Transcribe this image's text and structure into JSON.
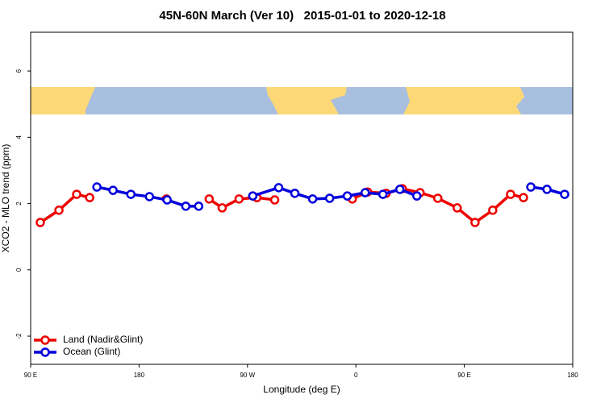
{
  "chart_data": {
    "type": "line",
    "title": "45N-60N March (Ver 10)   2015-01-01 to 2020-12-18",
    "x_label": "Longitude (deg E)",
    "y_label": "XCO2 - MLO trend (ppm)",
    "xlim": [
      90,
      540
    ],
    "ylim": [
      -2.85,
      7.17
    ],
    "xticks": [
      {
        "value": 90,
        "label": "90 E"
      },
      180,
      {
        "value": 270,
        "label": "90 W"
      },
      {
        "value": 360,
        "label": "0"
      },
      {
        "value": 450,
        "label": "90 E"
      },
      {
        "value": 540,
        "label": "180"
      }
    ],
    "yticks": [
      -2,
      0,
      2,
      4,
      6
    ],
    "legend": "bottom-left",
    "series": [
      {
        "name": "Land (Nadir&Glint)",
        "color": "#ee0000",
        "x": [
          98.0,
          113.5,
          128.2,
          139.0,
          null,
          202.7,
          null,
          238.2,
          249.0,
          263.0,
          277.8,
          292.6,
          null,
          357.0,
          369.7,
          385.1,
          398.5,
          413.3,
          428.0,
          444.1,
          458.9,
          473.6,
          488.4,
          499.1
        ],
        "values": [
          1.43,
          1.8,
          2.28,
          2.18,
          null,
          2.14,
          null,
          2.14,
          1.87,
          2.14,
          2.18,
          2.11,
          null,
          2.14,
          2.35,
          2.31,
          2.45,
          2.33,
          2.16,
          1.87,
          1.43,
          1.8,
          2.28,
          2.18
        ]
      },
      {
        "name": "Ocean (Glint)",
        "color": "#0000dd",
        "x": [
          145.0,
          158.4,
          173.2,
          188.6,
          203.3,
          218.8,
          229.5,
          null,
          274.4,
          295.9,
          309.3,
          324.1,
          338.2,
          352.9,
          367.7,
          382.4,
          396.5,
          410.6,
          null,
          505.2,
          518.6,
          533.3
        ],
        "values": [
          2.5,
          2.4,
          2.28,
          2.21,
          2.11,
          1.92,
          1.92,
          null,
          2.23,
          2.48,
          2.31,
          2.14,
          2.16,
          2.23,
          2.33,
          2.28,
          2.43,
          2.23,
          null,
          2.5,
          2.43,
          2.28
        ]
      }
    ]
  }
}
